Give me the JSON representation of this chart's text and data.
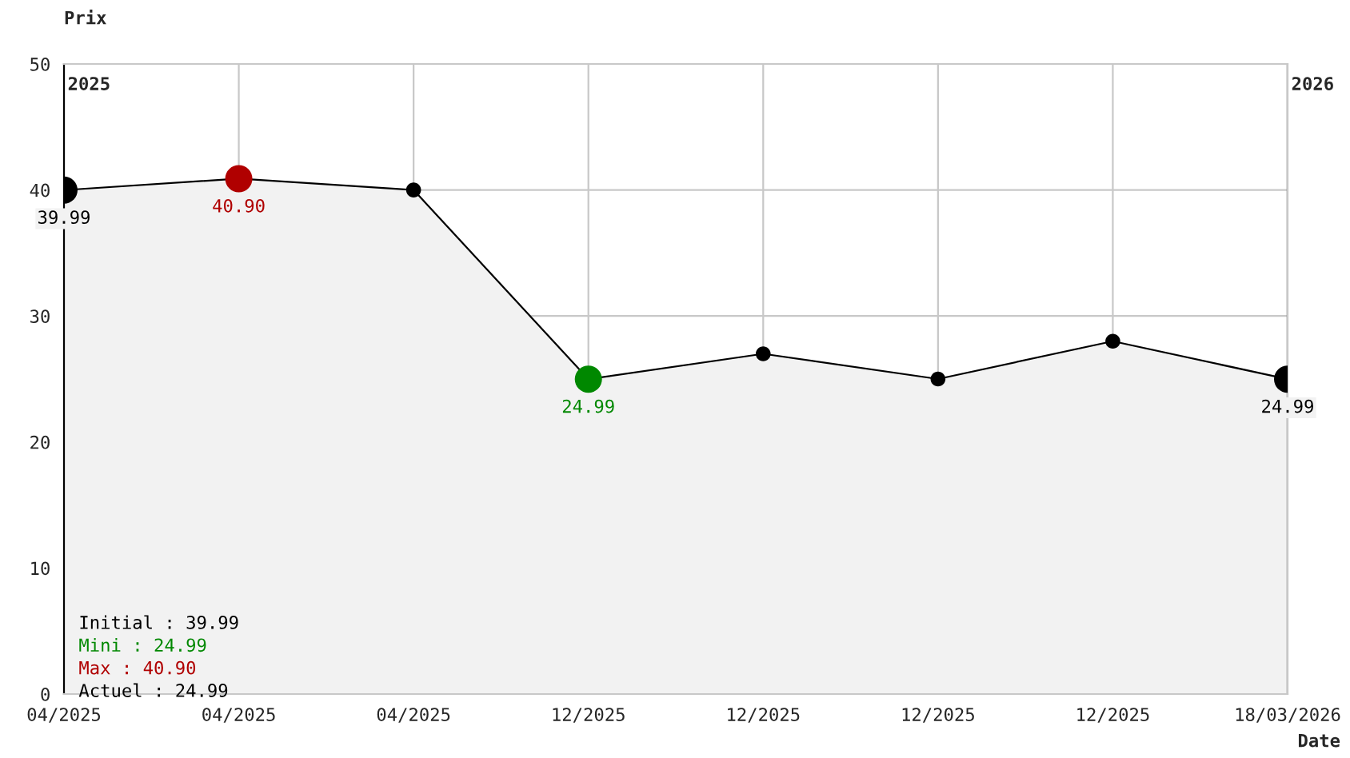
{
  "chart_data": {
    "type": "area",
    "ylabel": "Prix",
    "xlabel": "Date",
    "categories": [
      "04/2025",
      "04/2025",
      "04/2025",
      "12/2025",
      "12/2025",
      "12/2025",
      "12/2025",
      "18/03/2026"
    ],
    "series": [
      {
        "color": "#000000",
        "colors": [
          "#000000",
          "#b00000",
          "#000000",
          "#008800",
          "#000000",
          "#000000",
          "#000000",
          "#000000"
        ],
        "values": [
          39.99,
          40.9,
          40.0,
          24.99,
          27.0,
          25.0,
          28.0,
          24.99
        ],
        "value_labels": [
          "39.99",
          "40.90",
          null,
          "24.99",
          null,
          null,
          null,
          "24.99"
        ]
      }
    ],
    "ylim": [
      0,
      50
    ],
    "yticks": [
      0,
      10,
      20,
      30,
      40,
      50
    ],
    "grid": true,
    "marker": "circle",
    "annotations": [
      "2025",
      "2026",
      "Initial : 39.99",
      "Mini : 24.99",
      "Max : 40.90",
      "Actuel : 24.99"
    ]
  }
}
